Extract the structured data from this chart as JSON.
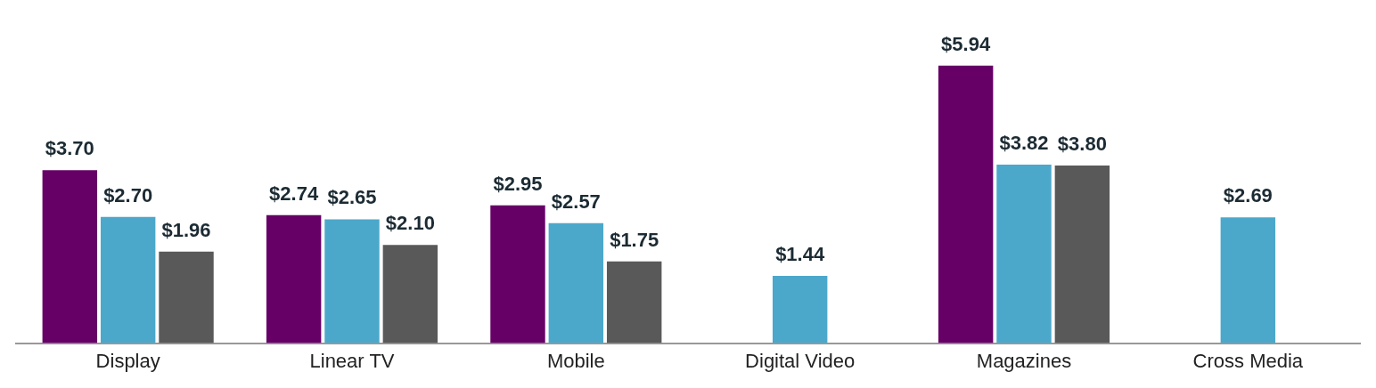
{
  "chart_data": {
    "type": "bar",
    "categories": [
      "Display",
      "Linear TV",
      "Mobile",
      "Digital Video",
      "Magazines",
      "Cross Media"
    ],
    "series": [
      {
        "color": "#660066",
        "values": [
          3.7,
          2.74,
          2.95,
          null,
          5.94,
          null
        ],
        "value_labels": [
          "$3.70",
          "$2.74",
          "$2.95",
          null,
          "$5.94",
          null
        ]
      },
      {
        "color": "#4ba8cb",
        "values": [
          2.7,
          2.65,
          2.57,
          1.44,
          3.82,
          2.69
        ],
        "value_labels": [
          "$2.70",
          "$2.65",
          "$2.57",
          "$1.44",
          "$3.82",
          "$2.69"
        ]
      },
      {
        "color": "#595959",
        "values": [
          1.96,
          2.1,
          1.75,
          null,
          3.8,
          null
        ],
        "value_labels": [
          "$1.96",
          "$2.10",
          "$1.75",
          null,
          "$3.80",
          null
        ]
      }
    ],
    "grid": false,
    "legend": false
  }
}
